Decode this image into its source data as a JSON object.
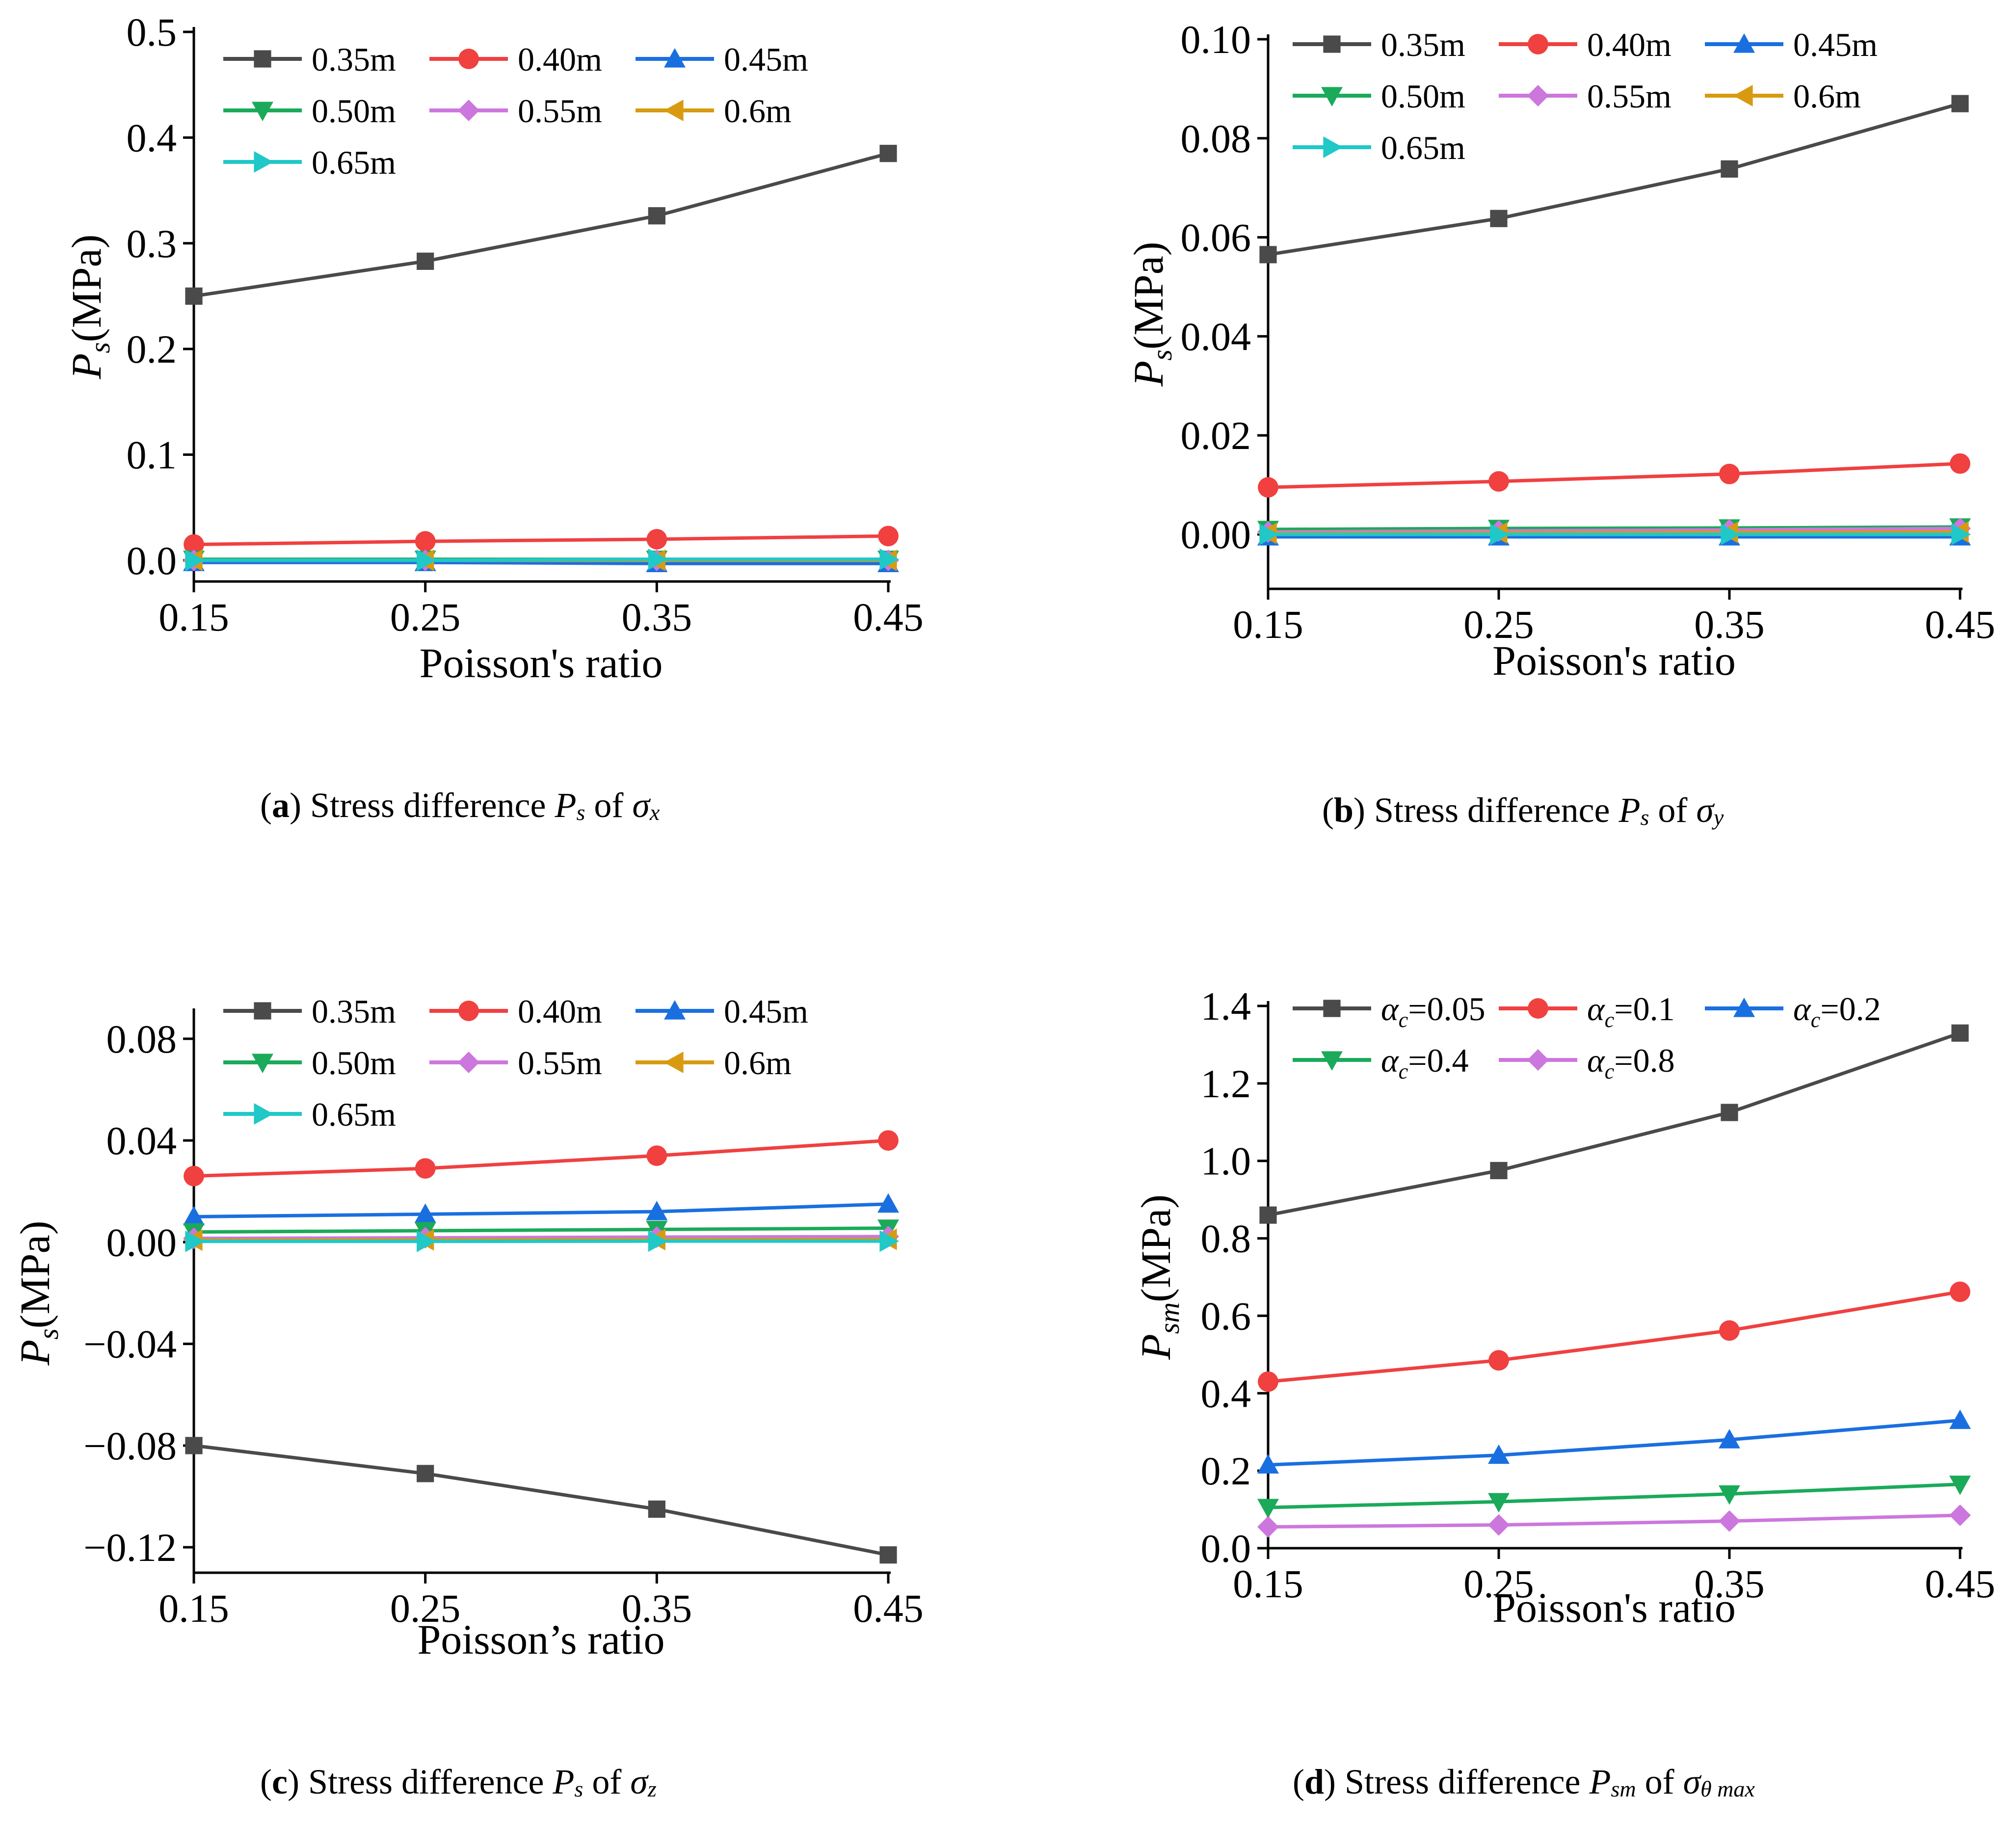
{
  "colors": {
    "series": [
      "#4a4a4a",
      "#f04040",
      "#1a6fe0",
      "#1aaa5a",
      "#cc77dd",
      "#d89a10",
      "#20c8c8"
    ]
  },
  "chart_data": [
    {
      "id": "a",
      "type": "line",
      "xlabel": "Poisson's ratio",
      "ylabel_main": "P",
      "ylabel_sub": "s",
      "ylabel_unit": "(MPa)",
      "xlim": [
        0.15,
        0.45
      ],
      "ylim": [
        -0.02,
        0.5
      ],
      "xticks": [
        "0.15",
        "0.25",
        "0.35",
        "0.45"
      ],
      "xtick_values": [
        0.15,
        0.25,
        0.35,
        0.45
      ],
      "yticks": [
        "0.0",
        "0.1",
        "0.2",
        "0.3",
        "0.4",
        "0.5"
      ],
      "ytick_values": [
        0.0,
        0.1,
        0.2,
        0.3,
        0.4,
        0.5
      ],
      "x": [
        0.15,
        0.25,
        0.35,
        0.45
      ],
      "series": [
        {
          "name": "0.35m",
          "marker": "square",
          "values": [
            0.25,
            0.283,
            0.326,
            0.385
          ]
        },
        {
          "name": "0.40m",
          "marker": "circle",
          "values": [
            0.015,
            0.018,
            0.02,
            0.023
          ]
        },
        {
          "name": "0.45m",
          "marker": "triangle-up",
          "values": [
            -0.002,
            -0.002,
            -0.003,
            -0.003
          ]
        },
        {
          "name": "0.50m",
          "marker": "triangle-down",
          "values": [
            0.001,
            0.001,
            0.001,
            0.001
          ]
        },
        {
          "name": "0.55m",
          "marker": "diamond",
          "values": [
            0.0,
            0.0,
            0.0,
            0.0
          ]
        },
        {
          "name": "0.6m",
          "marker": "triangle-left",
          "values": [
            0.0,
            0.0,
            0.0,
            0.0
          ]
        },
        {
          "name": "0.65m",
          "marker": "triangle-right",
          "values": [
            0.0,
            0.0,
            0.001,
            0.001
          ]
        }
      ],
      "caption": {
        "letter": "a",
        "text": " Stress difference ",
        "P": "P",
        "P_sub": "s",
        "of": " of ",
        "sigma": "σ",
        "sigma_sub": "x"
      }
    },
    {
      "id": "b",
      "type": "line",
      "xlabel": "Poisson's ratio",
      "ylabel_main": "P",
      "ylabel_sub": "s",
      "ylabel_unit": "(MPa)",
      "xlim": [
        0.15,
        0.45
      ],
      "ylim": [
        -0.011,
        0.1
      ],
      "xticks": [
        "0.15",
        "0.25",
        "0.35",
        "0.45"
      ],
      "xtick_values": [
        0.15,
        0.25,
        0.35,
        0.45
      ],
      "yticks": [
        "0.00",
        "0.02",
        "0.04",
        "0.06",
        "0.08",
        "0.10"
      ],
      "ytick_values": [
        0.0,
        0.02,
        0.04,
        0.06,
        0.08,
        0.1
      ],
      "x": [
        0.15,
        0.25,
        0.35,
        0.45
      ],
      "series": [
        {
          "name": "0.35m",
          "marker": "square",
          "values": [
            0.0565,
            0.0638,
            0.0738,
            0.087
          ]
        },
        {
          "name": "0.40m",
          "marker": "circle",
          "values": [
            0.0095,
            0.0107,
            0.0122,
            0.0143
          ]
        },
        {
          "name": "0.45m",
          "marker": "triangle-up",
          "values": [
            -0.0005,
            -0.0005,
            -0.0005,
            -0.0005
          ]
        },
        {
          "name": "0.50m",
          "marker": "triangle-down",
          "values": [
            0.001,
            0.0012,
            0.0013,
            0.0015
          ]
        },
        {
          "name": "0.55m",
          "marker": "diamond",
          "values": [
            0.0005,
            0.0007,
            0.0009,
            0.0012
          ]
        },
        {
          "name": "0.6m",
          "marker": "triangle-left",
          "values": [
            0.0002,
            0.0003,
            0.0004,
            0.0005
          ]
        },
        {
          "name": "0.65m",
          "marker": "triangle-right",
          "values": [
            0.0,
            0.0,
            0.0,
            0.0
          ]
        }
      ],
      "caption": {
        "letter": "b",
        "text": " Stress difference ",
        "P": "P",
        "P_sub": "s",
        "of": " of ",
        "sigma": "σ",
        "sigma_sub": "y"
      }
    },
    {
      "id": "c",
      "type": "line",
      "xlabel": "Poisson’s ratio",
      "ylabel_main": "P",
      "ylabel_sub": "s",
      "ylabel_unit": "(MPa)",
      "xlim": [
        0.15,
        0.45
      ],
      "ylim": [
        -0.13,
        0.09
      ],
      "xticks": [
        "0.15",
        "0.25",
        "0.35",
        "0.45"
      ],
      "xtick_values": [
        0.15,
        0.25,
        0.35,
        0.45
      ],
      "yticks": [
        "−0.12",
        "−0.08",
        "−0.04",
        "0.00",
        "0.04",
        "0.08"
      ],
      "ytick_values": [
        -0.12,
        -0.08,
        -0.04,
        0.0,
        0.04,
        0.08
      ],
      "x": [
        0.15,
        0.25,
        0.35,
        0.45
      ],
      "series": [
        {
          "name": "0.35m",
          "marker": "square",
          "values": [
            -0.08,
            -0.091,
            -0.105,
            -0.123
          ]
        },
        {
          "name": "0.40m",
          "marker": "circle",
          "values": [
            0.026,
            0.029,
            0.034,
            0.04
          ]
        },
        {
          "name": "0.45m",
          "marker": "triangle-up",
          "values": [
            0.01,
            0.011,
            0.012,
            0.015
          ]
        },
        {
          "name": "0.50m",
          "marker": "triangle-down",
          "values": [
            0.004,
            0.0045,
            0.005,
            0.0055
          ]
        },
        {
          "name": "0.55m",
          "marker": "diamond",
          "values": [
            0.0015,
            0.0017,
            0.002,
            0.0022
          ]
        },
        {
          "name": "0.6m",
          "marker": "triangle-left",
          "values": [
            0.0008,
            0.0009,
            0.001,
            0.0011
          ]
        },
        {
          "name": "0.65m",
          "marker": "triangle-right",
          "values": [
            0.0003,
            0.0003,
            0.0004,
            0.0004
          ]
        }
      ],
      "caption": {
        "letter": "c",
        "text": " Stress difference ",
        "P": "P",
        "P_sub": "s",
        "of": " of ",
        "sigma": "σ",
        "sigma_sub": "z"
      }
    },
    {
      "id": "d",
      "type": "line",
      "xlabel": "Poisson's ratio",
      "ylabel_main": "P",
      "ylabel_sub": "sm",
      "ylabel_unit": "(MPa)",
      "xlim": [
        0.15,
        0.45
      ],
      "ylim": [
        0.0,
        1.4
      ],
      "xticks": [
        "0.15",
        "0.25",
        "0.35",
        "0.45"
      ],
      "xtick_values": [
        0.15,
        0.25,
        0.35,
        0.45
      ],
      "yticks": [
        "0.0",
        "0.2",
        "0.4",
        "0.6",
        "0.8",
        "1.0",
        "1.2",
        "1.4"
      ],
      "ytick_values": [
        0.0,
        0.2,
        0.4,
        0.6,
        0.8,
        1.0,
        1.2,
        1.4
      ],
      "x": [
        0.15,
        0.25,
        0.35,
        0.45
      ],
      "series": [
        {
          "name": "α_c=0.05",
          "label_main": "α",
          "label_sub": "c",
          "label_rest": "=0.05",
          "marker": "square",
          "values": [
            0.86,
            0.975,
            1.125,
            1.33
          ]
        },
        {
          "name": "α_c=0.1",
          "label_main": "α",
          "label_sub": "c",
          "label_rest": "=0.1",
          "marker": "circle",
          "values": [
            0.43,
            0.485,
            0.562,
            0.662
          ]
        },
        {
          "name": "α_c=0.2",
          "label_main": "α",
          "label_sub": "c",
          "label_rest": "=0.2",
          "marker": "triangle-up",
          "values": [
            0.215,
            0.24,
            0.28,
            0.33
          ]
        },
        {
          "name": "α_c=0.4",
          "label_main": "α",
          "label_sub": "c",
          "label_rest": "=0.4",
          "marker": "triangle-down",
          "values": [
            0.105,
            0.12,
            0.14,
            0.165
          ]
        },
        {
          "name": "α_c=0.8",
          "label_main": "α",
          "label_sub": "c",
          "label_rest": "=0.8",
          "marker": "diamond",
          "values": [
            0.055,
            0.06,
            0.07,
            0.085
          ]
        }
      ],
      "caption": {
        "letter": "d",
        "text": " Stress difference ",
        "P": "P",
        "P_sub": "sm",
        "of": " of ",
        "sigma": "σ",
        "sigma_sub": "θ max"
      }
    }
  ]
}
